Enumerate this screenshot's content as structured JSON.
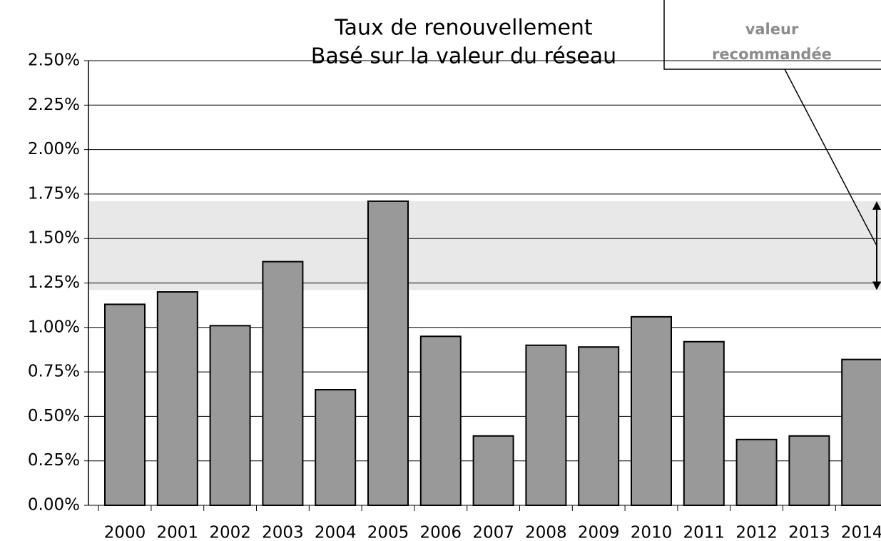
{
  "chart_data": {
    "type": "bar",
    "title": "Taux de renouvellement",
    "subtitle": "Basé sur la valeur du réseau",
    "categories": [
      "2000",
      "2001",
      "2002",
      "2003",
      "2004",
      "2005",
      "2006",
      "2007",
      "2008",
      "2009",
      "2010",
      "2011",
      "2012",
      "2013",
      "2014"
    ],
    "values": [
      1.13,
      1.2,
      1.01,
      1.37,
      0.65,
      1.71,
      0.95,
      0.39,
      0.9,
      0.89,
      1.06,
      0.92,
      0.37,
      0.39,
      0.82
    ],
    "color": "#999999",
    "ylim": [
      0,
      2.5
    ],
    "yticks": [
      {
        "value": 0,
        "label": "0.00%"
      },
      {
        "value": 0.25,
        "label": "0.25%"
      },
      {
        "value": 0.5,
        "label": "0.50%"
      },
      {
        "value": 0.75,
        "label": "0.75%"
      },
      {
        "value": 1,
        "label": "1.00%"
      },
      {
        "value": 1.25,
        "label": "1.25%"
      },
      {
        "value": 1.5,
        "label": "1.50%"
      },
      {
        "value": 1.75,
        "label": "1.75%"
      },
      {
        "value": 2,
        "label": "2.00%"
      },
      {
        "value": 2.25,
        "label": "2.25%"
      },
      {
        "value": 2.5,
        "label": "2.50%"
      }
    ],
    "grid": true,
    "recommended_range": [
      1.21,
      1.71
    ],
    "annotation": [
      "valeur",
      "recommandée"
    ]
  }
}
